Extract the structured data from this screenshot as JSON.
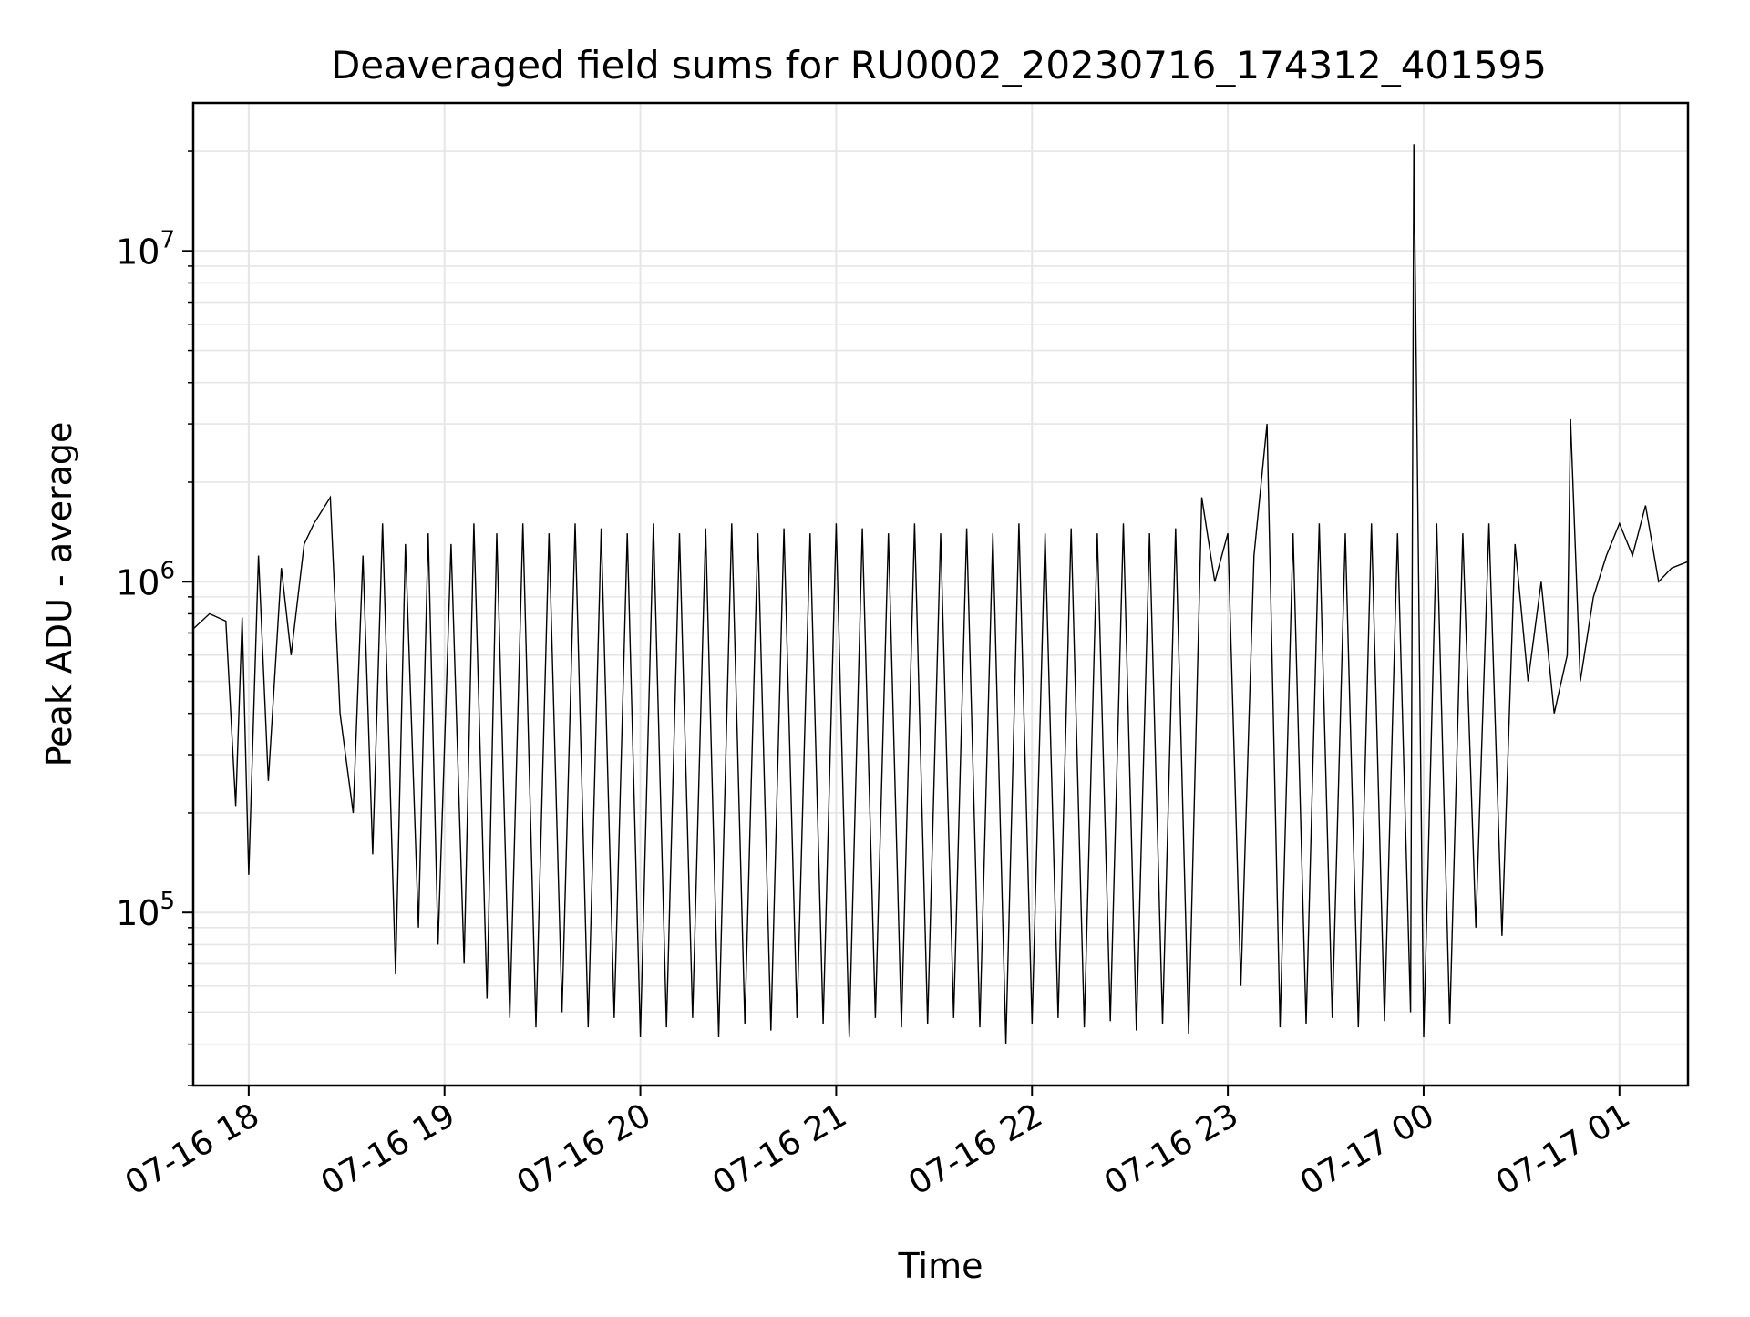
{
  "chart_data": {
    "type": "line",
    "title": "Deaveraged field sums for RU0002_20230716_174312_401595",
    "xlabel": "Time",
    "ylabel": "Peak ADU - average",
    "y_scale": "log",
    "ylim": [
      30000,
      28000000
    ],
    "xlim": [
      "2023-07-16 17:43",
      "2023-07-17 01:21"
    ],
    "grid": true,
    "line_color": "#000000",
    "x_ticks": [
      {
        "value": "2023-07-16 18:00",
        "label": "07-16 18"
      },
      {
        "value": "2023-07-16 19:00",
        "label": "07-16 19"
      },
      {
        "value": "2023-07-16 20:00",
        "label": "07-16 20"
      },
      {
        "value": "2023-07-16 21:00",
        "label": "07-16 21"
      },
      {
        "value": "2023-07-16 22:00",
        "label": "07-16 22"
      },
      {
        "value": "2023-07-16 23:00",
        "label": "07-16 23"
      },
      {
        "value": "2023-07-17 00:00",
        "label": "07-17 00"
      },
      {
        "value": "2023-07-17 01:00",
        "label": "07-17 01"
      }
    ],
    "y_ticks": [
      {
        "value": 100000,
        "base": "10",
        "exp": "5"
      },
      {
        "value": 1000000,
        "base": "10",
        "exp": "6"
      },
      {
        "value": 10000000,
        "base": "10",
        "exp": "7"
      }
    ],
    "series": [
      {
        "x": [
          "2023-07-16 17:43",
          "2023-07-16 17:48",
          "2023-07-16 17:53",
          "2023-07-16 17:56",
          "2023-07-16 17:58",
          "2023-07-16 18:00",
          "2023-07-16 18:03",
          "2023-07-16 18:06",
          "2023-07-16 18:10",
          "2023-07-16 18:13",
          "2023-07-16 18:17",
          "2023-07-16 18:20",
          "2023-07-16 18:25",
          "2023-07-16 18:28",
          "2023-07-16 18:32",
          "2023-07-16 18:35",
          "2023-07-16 18:38",
          "2023-07-16 18:41",
          "2023-07-16 18:45",
          "2023-07-16 18:48",
          "2023-07-16 18:52",
          "2023-07-16 18:55",
          "2023-07-16 18:58",
          "2023-07-16 19:02",
          "2023-07-16 19:06",
          "2023-07-16 19:09",
          "2023-07-16 19:13",
          "2023-07-16 19:16",
          "2023-07-16 19:20",
          "2023-07-16 19:24",
          "2023-07-16 19:28",
          "2023-07-16 19:32",
          "2023-07-16 19:36",
          "2023-07-16 19:40",
          "2023-07-16 19:44",
          "2023-07-16 19:48",
          "2023-07-16 19:52",
          "2023-07-16 19:56",
          "2023-07-16 20:00",
          "2023-07-16 20:04",
          "2023-07-16 20:08",
          "2023-07-16 20:12",
          "2023-07-16 20:16",
          "2023-07-16 20:20",
          "2023-07-16 20:24",
          "2023-07-16 20:28",
          "2023-07-16 20:32",
          "2023-07-16 20:36",
          "2023-07-16 20:40",
          "2023-07-16 20:44",
          "2023-07-16 20:48",
          "2023-07-16 20:52",
          "2023-07-16 20:56",
          "2023-07-16 21:00",
          "2023-07-16 21:04",
          "2023-07-16 21:08",
          "2023-07-16 21:12",
          "2023-07-16 21:16",
          "2023-07-16 21:20",
          "2023-07-16 21:24",
          "2023-07-16 21:28",
          "2023-07-16 21:32",
          "2023-07-16 21:36",
          "2023-07-16 21:40",
          "2023-07-16 21:44",
          "2023-07-16 21:48",
          "2023-07-16 21:52",
          "2023-07-16 21:56",
          "2023-07-16 22:00",
          "2023-07-16 22:04",
          "2023-07-16 22:08",
          "2023-07-16 22:12",
          "2023-07-16 22:16",
          "2023-07-16 22:20",
          "2023-07-16 22:24",
          "2023-07-16 22:28",
          "2023-07-16 22:32",
          "2023-07-16 22:36",
          "2023-07-16 22:40",
          "2023-07-16 22:44",
          "2023-07-16 22:48",
          "2023-07-16 22:52",
          "2023-07-16 22:56",
          "2023-07-16 23:00",
          "2023-07-16 23:04",
          "2023-07-16 23:08",
          "2023-07-16 23:12",
          "2023-07-16 23:16",
          "2023-07-16 23:20",
          "2023-07-16 23:24",
          "2023-07-16 23:28",
          "2023-07-16 23:32",
          "2023-07-16 23:36",
          "2023-07-16 23:40",
          "2023-07-16 23:44",
          "2023-07-16 23:48",
          "2023-07-16 23:52",
          "2023-07-16 23:56",
          "2023-07-16 23:57",
          "2023-07-17 00:00",
          "2023-07-17 00:04",
          "2023-07-17 00:08",
          "2023-07-17 00:12",
          "2023-07-17 00:16",
          "2023-07-17 00:20",
          "2023-07-17 00:24",
          "2023-07-17 00:28",
          "2023-07-17 00:32",
          "2023-07-17 00:36",
          "2023-07-17 00:40",
          "2023-07-17 00:44",
          "2023-07-17 00:45",
          "2023-07-17 00:48",
          "2023-07-17 00:52",
          "2023-07-17 00:56",
          "2023-07-17 01:00",
          "2023-07-17 01:04",
          "2023-07-17 01:08",
          "2023-07-17 01:12",
          "2023-07-17 01:16",
          "2023-07-17 01:21"
        ],
        "values": [
          720000,
          800000,
          760000,
          210000,
          780000,
          130000,
          1200000,
          250000,
          1100000,
          600000,
          1300000,
          1500000,
          1800000,
          400000,
          200000,
          1200000,
          150000,
          1500000,
          65000,
          1300000,
          90000,
          1400000,
          80000,
          1300000,
          70000,
          1500000,
          55000,
          1400000,
          48000,
          1500000,
          45000,
          1400000,
          50000,
          1500000,
          45000,
          1450000,
          48000,
          1400000,
          42000,
          1500000,
          45000,
          1400000,
          48000,
          1450000,
          42000,
          1500000,
          46000,
          1400000,
          44000,
          1450000,
          48000,
          1400000,
          46000,
          1500000,
          42000,
          1450000,
          48000,
          1400000,
          45000,
          1500000,
          46000,
          1400000,
          48000,
          1450000,
          45000,
          1400000,
          40000,
          1500000,
          46000,
          1400000,
          48000,
          1450000,
          45000,
          1400000,
          47000,
          1500000,
          44000,
          1400000,
          46000,
          1450000,
          43000,
          1800000,
          1000000,
          1400000,
          60000,
          1200000,
          3000000,
          45000,
          1400000,
          46000,
          1500000,
          48000,
          1400000,
          45000,
          1500000,
          47000,
          1400000,
          50000,
          21000000,
          42000,
          1500000,
          46000,
          1400000,
          90000,
          1500000,
          85000,
          1300000,
          500000,
          1000000,
          400000,
          600000,
          3100000,
          500000,
          900000,
          1200000,
          1500000,
          1200000,
          1700000,
          1000000,
          1100000,
          1150000
        ]
      }
    ]
  }
}
